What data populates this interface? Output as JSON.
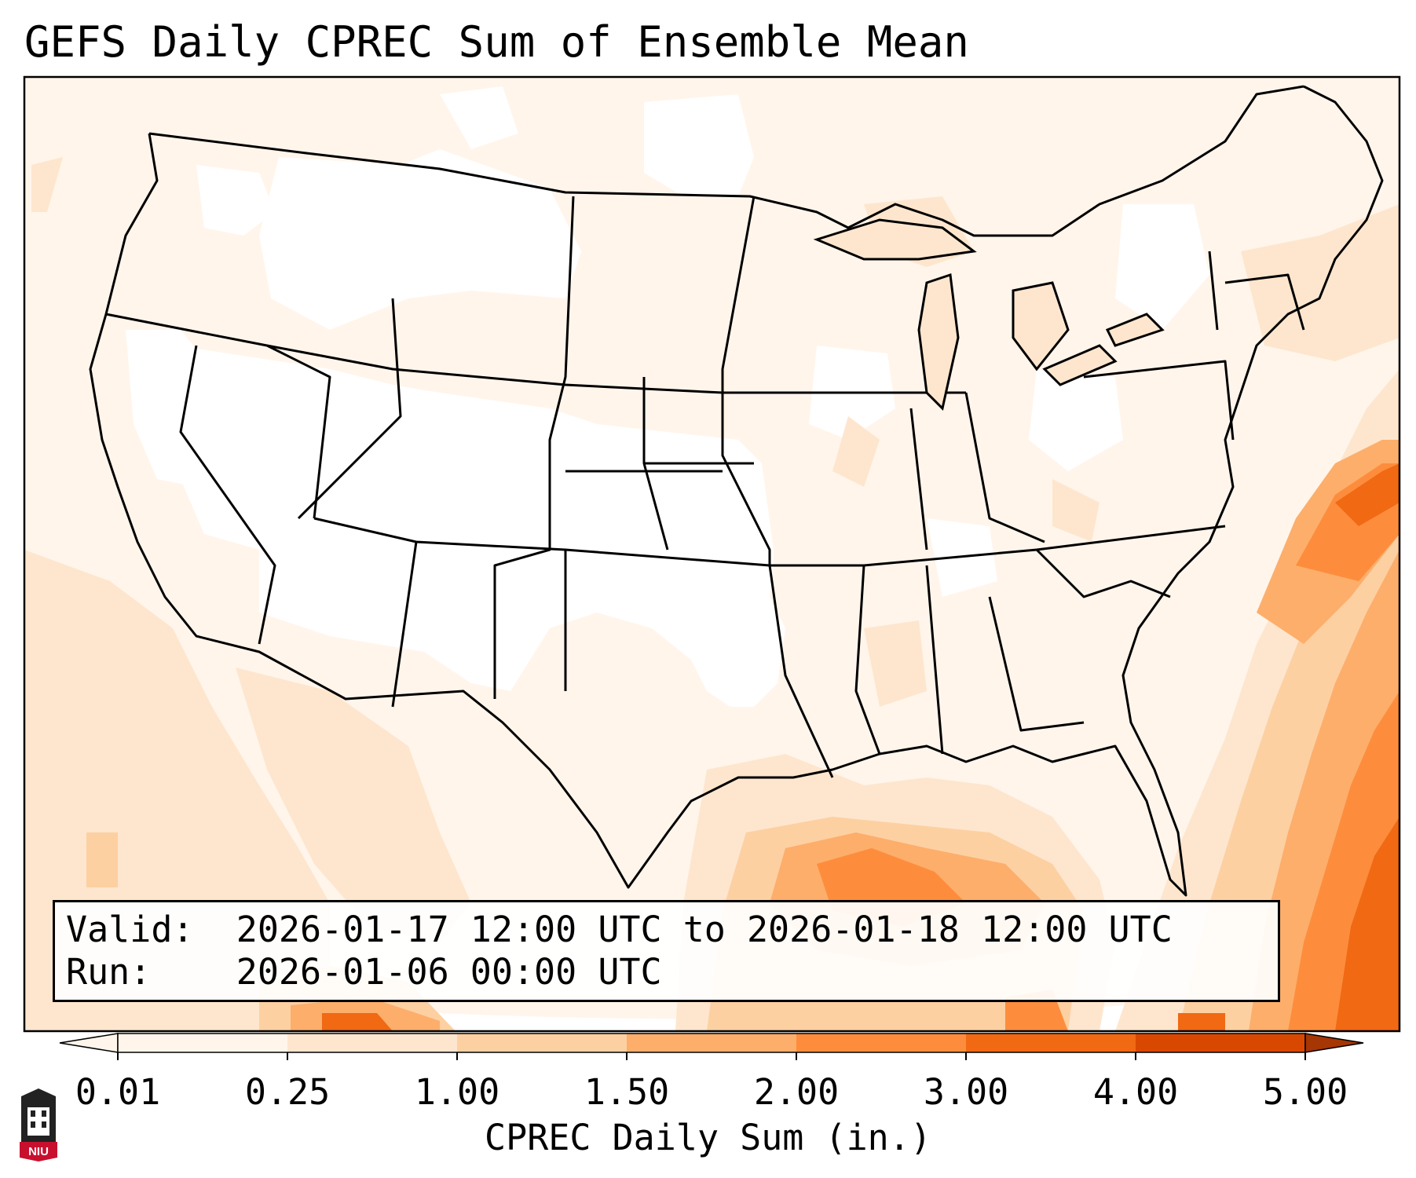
{
  "title": "GEFS Daily CPREC Sum of Ensemble Mean",
  "info": {
    "valid_label": "Valid:",
    "valid_value": "2026-01-17 12:00 UTC to 2026-01-18 12:00 UTC",
    "run_label": "Run:",
    "run_value": "2026-01-06 00:00 UTC"
  },
  "colorbar": {
    "title": "CPREC Daily Sum (in.)",
    "ticks": [
      "0.01",
      "0.25",
      "1.00",
      "1.50",
      "2.00",
      "3.00",
      "4.00",
      "5.00"
    ],
    "colors": [
      "#fff5eb",
      "#fee6ce",
      "#fdd0a2",
      "#fdae6b",
      "#fd8d3c",
      "#f16913",
      "#d94801",
      "#a63603"
    ],
    "extend": "both"
  },
  "logo": {
    "text": "NIU",
    "color": "#c8102e"
  }
}
